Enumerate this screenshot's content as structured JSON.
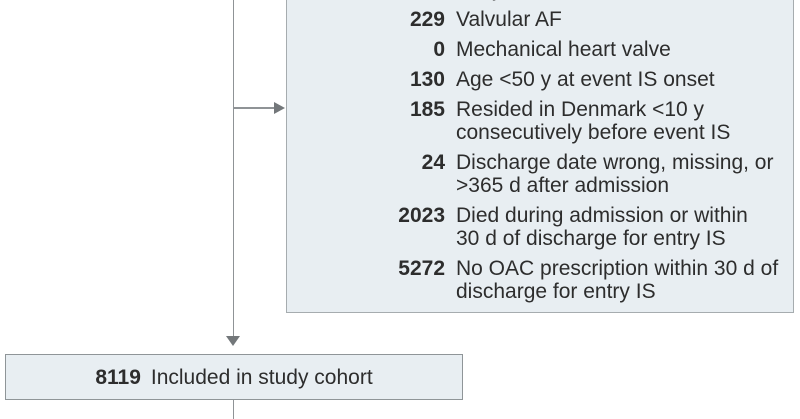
{
  "figure": {
    "type": "study-flow-diagram",
    "exclusion_box": {
      "clipped_first_line": "entry IS",
      "items": [
        {
          "count": "229",
          "label": "Valvular AF"
        },
        {
          "count": "0",
          "label": "Mechanical heart valve"
        },
        {
          "count": "130",
          "label": "Age <50 y at event IS onset"
        },
        {
          "count": "185",
          "label": "Resided in Denmark <10 y\nconsecutively before event IS"
        },
        {
          "count": "24",
          "label": "Discharge date wrong, missing, or\n>365 d after admission"
        },
        {
          "count": "2023",
          "label": "Died during admission or within\n30 d of discharge for entry IS"
        },
        {
          "count": "5272",
          "label": "No OAC prescription within 30 d of\ndischarge for entry IS"
        }
      ]
    },
    "cohort_box": {
      "count": "8119",
      "label": "Included in study cohort"
    },
    "colors": {
      "box_fill": "#e8eef2",
      "box_border": "#a6acaf",
      "cohort_box_border": "#8f9598",
      "connector": "#8f9396",
      "arrowhead": "#73777a",
      "text": "#2d2d2d"
    }
  }
}
